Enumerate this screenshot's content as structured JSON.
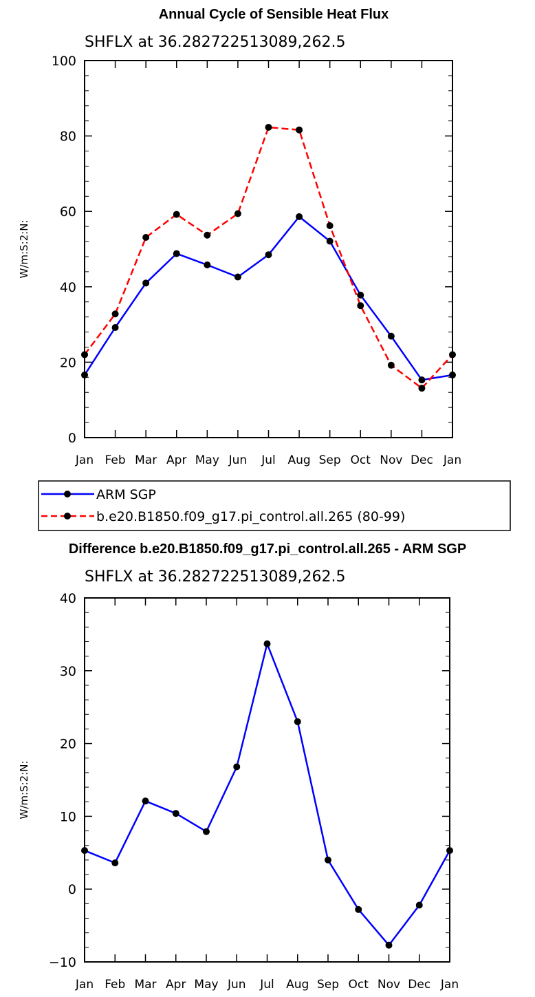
{
  "chart_data": [
    {
      "type": "line",
      "title": "Annual Cycle of Sensible Heat Flux",
      "subtitle": "SHFLX at 36.282722513089,262.5",
      "ylabel": "W/m:S:2:N:",
      "xlabel": "",
      "ylim": [
        0,
        100
      ],
      "yticks": [
        0,
        20,
        40,
        60,
        80,
        100
      ],
      "categories": [
        "Jan",
        "Feb",
        "Mar",
        "Apr",
        "May",
        "Jun",
        "Jul",
        "Aug",
        "Sep",
        "Oct",
        "Nov",
        "Dec",
        "Jan"
      ],
      "series": [
        {
          "name": "ARM SGP",
          "color": "#0000ff",
          "dash": "solid",
          "values": [
            16.6,
            29.2,
            41.0,
            48.8,
            45.8,
            42.6,
            48.5,
            58.6,
            52.1,
            37.8,
            26.9,
            15.3,
            16.6
          ]
        },
        {
          "name": "b.e20.B1850.f09_g17.pi_control.all.265 (80-99)",
          "color": "#ff0000",
          "dash": "dashed",
          "values": [
            22.0,
            32.8,
            53.1,
            59.2,
            53.7,
            59.4,
            82.3,
            81.6,
            56.2,
            35.0,
            19.2,
            13.1,
            22.0
          ]
        }
      ],
      "legend": "below"
    },
    {
      "type": "line",
      "title": "Difference b.e20.B1850.f09_g17.pi_control.all.265 - ARM SGP",
      "subtitle": "SHFLX at 36.282722513089,262.5",
      "ylabel": "W/m:S:2:N:",
      "xlabel": "",
      "ylim": [
        -10,
        40
      ],
      "yticks": [
        -10,
        0,
        10,
        20,
        30,
        40
      ],
      "categories": [
        "Jan",
        "Feb",
        "Mar",
        "Apr",
        "May",
        "Jun",
        "Jul",
        "Aug",
        "Sep",
        "Oct",
        "Nov",
        "Dec",
        "Jan"
      ],
      "series": [
        {
          "color": "#0000ff",
          "dash": "solid",
          "values": [
            5.3,
            3.6,
            12.1,
            10.4,
            7.9,
            16.8,
            33.7,
            23.0,
            4.0,
            -2.8,
            -7.7,
            -2.2,
            5.3
          ]
        }
      ]
    }
  ]
}
